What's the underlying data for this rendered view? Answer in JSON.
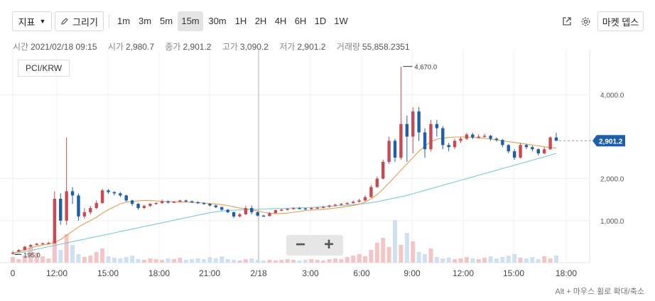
{
  "toolbar": {
    "indicator_label": "지표",
    "draw_label": "그리기",
    "timeframes": [
      "1m",
      "3m",
      "5m",
      "15m",
      "30m",
      "1H",
      "2H",
      "4H",
      "6H",
      "1D",
      "1W"
    ],
    "active_timeframe": "15m",
    "market_depth_label": "마켓 뎁스"
  },
  "ohlc": {
    "time_label": "시간",
    "time_value": "2021/02/18 09:15",
    "open_label": "시가",
    "open_value": "2,980.7",
    "close_label": "종가",
    "close_value": "2,901.2",
    "high_label": "고가",
    "high_value": "3,090.2",
    "low_label": "저가",
    "low_value": "2,901.2",
    "volume_label": "거래량",
    "volume_value": "55,858.2351"
  },
  "pair": "PCI/KRW",
  "zoom": {
    "out": "−",
    "in": "+"
  },
  "hint": "Alt + 마우스 휠로 확대/축소",
  "colors": {
    "up": "#c84a52",
    "down": "#1f5ea8",
    "ma_short": "#e0a050",
    "ma_long": "#7ec8d8",
    "price_tag": "#1f5ea8"
  },
  "chart_data": {
    "type": "candlestick",
    "y_ticks": [
      "1,000.0",
      "2,000.0",
      "4,000.0"
    ],
    "y_tick_values": [
      1000,
      2000,
      4000
    ],
    "ylim": [
      0,
      4900
    ],
    "x_ticks": [
      "0",
      "12:00",
      "15:00",
      "18:00",
      "21:00",
      "2/18",
      "3:00",
      "6:00",
      "9:00",
      "12:00",
      "15:00",
      "18:00"
    ],
    "current_price": 2901.2,
    "current_price_label": "2,901.2",
    "max_label": "4,670.0",
    "max_value": 4670,
    "min_label": "195.0",
    "min_value": 195,
    "candles": [
      {
        "o": 220,
        "c": 240,
        "h": 280,
        "l": 195
      },
      {
        "o": 260,
        "c": 300,
        "h": 320,
        "l": 250
      },
      {
        "o": 300,
        "c": 380,
        "h": 400,
        "l": 290
      },
      {
        "o": 380,
        "c": 420,
        "h": 440,
        "l": 370
      },
      {
        "o": 420,
        "c": 450,
        "h": 470,
        "l": 410
      },
      {
        "o": 450,
        "c": 460,
        "h": 480,
        "l": 440
      },
      {
        "o": 460,
        "c": 470,
        "h": 490,
        "l": 450
      },
      {
        "o": 460,
        "c": 1520,
        "h": 1700,
        "l": 450
      },
      {
        "o": 1520,
        "c": 1000,
        "h": 1650,
        "l": 900
      },
      {
        "o": 1000,
        "c": 1700,
        "h": 2980,
        "l": 900
      },
      {
        "o": 1700,
        "c": 1600,
        "h": 1800,
        "l": 1400
      },
      {
        "o": 1600,
        "c": 1100,
        "h": 1650,
        "l": 1000
      },
      {
        "o": 1100,
        "c": 1200,
        "h": 1300,
        "l": 1050
      },
      {
        "o": 1200,
        "c": 1300,
        "h": 1350,
        "l": 1150
      },
      {
        "o": 1300,
        "c": 1420,
        "h": 1480,
        "l": 1280
      },
      {
        "o": 1420,
        "c": 1720,
        "h": 1760,
        "l": 1400
      },
      {
        "o": 1720,
        "c": 1680,
        "h": 1750,
        "l": 1640
      },
      {
        "o": 1680,
        "c": 1650,
        "h": 1700,
        "l": 1600
      },
      {
        "o": 1650,
        "c": 1600,
        "h": 1680,
        "l": 1560
      },
      {
        "o": 1600,
        "c": 1480,
        "h": 1620,
        "l": 1450
      },
      {
        "o": 1480,
        "c": 1400,
        "h": 1500,
        "l": 1350
      },
      {
        "o": 1400,
        "c": 1300,
        "h": 1420,
        "l": 1260
      },
      {
        "o": 1300,
        "c": 1350,
        "h": 1380,
        "l": 1280
      },
      {
        "o": 1350,
        "c": 1400,
        "h": 1420,
        "l": 1330
      },
      {
        "o": 1400,
        "c": 1420,
        "h": 1440,
        "l": 1380
      },
      {
        "o": 1420,
        "c": 1460,
        "h": 1500,
        "l": 1400
      },
      {
        "o": 1460,
        "c": 1430,
        "h": 1480,
        "l": 1410
      },
      {
        "o": 1430,
        "c": 1450,
        "h": 1470,
        "l": 1420
      },
      {
        "o": 1450,
        "c": 1480,
        "h": 1500,
        "l": 1430
      },
      {
        "o": 1480,
        "c": 1460,
        "h": 1500,
        "l": 1440
      },
      {
        "o": 1460,
        "c": 1440,
        "h": 1480,
        "l": 1420
      },
      {
        "o": 1440,
        "c": 1420,
        "h": 1460,
        "l": 1400
      },
      {
        "o": 1420,
        "c": 1400,
        "h": 1440,
        "l": 1380
      },
      {
        "o": 1400,
        "c": 1360,
        "h": 1410,
        "l": 1340
      },
      {
        "o": 1360,
        "c": 1320,
        "h": 1380,
        "l": 1300
      },
      {
        "o": 1320,
        "c": 1260,
        "h": 1340,
        "l": 1240
      },
      {
        "o": 1260,
        "c": 1200,
        "h": 1280,
        "l": 1180
      },
      {
        "o": 1200,
        "c": 1100,
        "h": 1220,
        "l": 1060
      },
      {
        "o": 1100,
        "c": 1150,
        "h": 1180,
        "l": 1080
      },
      {
        "o": 1150,
        "c": 1300,
        "h": 1350,
        "l": 1140
      },
      {
        "o": 1300,
        "c": 1200,
        "h": 1360,
        "l": 1150
      },
      {
        "o": 1200,
        "c": 1120,
        "h": 1220,
        "l": 1100
      },
      {
        "o": 1120,
        "c": 1110,
        "h": 1140,
        "l": 1100
      },
      {
        "o": 1110,
        "c": 1180,
        "h": 1200,
        "l": 1100
      },
      {
        "o": 1180,
        "c": 1250,
        "h": 1260,
        "l": 1170
      },
      {
        "o": 1250,
        "c": 1260,
        "h": 1280,
        "l": 1230
      },
      {
        "o": 1260,
        "c": 1280,
        "h": 1300,
        "l": 1240
      },
      {
        "o": 1280,
        "c": 1300,
        "h": 1320,
        "l": 1260
      },
      {
        "o": 1300,
        "c": 1290,
        "h": 1320,
        "l": 1270
      },
      {
        "o": 1290,
        "c": 1280,
        "h": 1310,
        "l": 1260
      },
      {
        "o": 1280,
        "c": 1300,
        "h": 1320,
        "l": 1260
      },
      {
        "o": 1300,
        "c": 1310,
        "h": 1330,
        "l": 1280
      },
      {
        "o": 1310,
        "c": 1330,
        "h": 1350,
        "l": 1290
      },
      {
        "o": 1330,
        "c": 1360,
        "h": 1380,
        "l": 1310
      },
      {
        "o": 1360,
        "c": 1380,
        "h": 1400,
        "l": 1340
      },
      {
        "o": 1380,
        "c": 1400,
        "h": 1420,
        "l": 1360
      },
      {
        "o": 1400,
        "c": 1420,
        "h": 1440,
        "l": 1380
      },
      {
        "o": 1420,
        "c": 1450,
        "h": 1480,
        "l": 1400
      },
      {
        "o": 1450,
        "c": 1480,
        "h": 1520,
        "l": 1430
      },
      {
        "o": 1480,
        "c": 1560,
        "h": 1600,
        "l": 1460
      },
      {
        "o": 1560,
        "c": 1800,
        "h": 1850,
        "l": 1540
      },
      {
        "o": 1800,
        "c": 2000,
        "h": 2050,
        "l": 1780
      },
      {
        "o": 2000,
        "c": 2400,
        "h": 2450,
        "l": 1980
      },
      {
        "o": 2400,
        "c": 2900,
        "h": 3000,
        "l": 2350
      },
      {
        "o": 2900,
        "c": 2500,
        "h": 2950,
        "l": 2400
      },
      {
        "o": 2500,
        "c": 3300,
        "h": 4670,
        "l": 2450
      },
      {
        "o": 3300,
        "c": 3000,
        "h": 3500,
        "l": 2400
      },
      {
        "o": 3000,
        "c": 3600,
        "h": 3700,
        "l": 2600
      },
      {
        "o": 3600,
        "c": 3100,
        "h": 3700,
        "l": 2900
      },
      {
        "o": 3100,
        "c": 2700,
        "h": 3200,
        "l": 2500
      },
      {
        "o": 2700,
        "c": 3300,
        "h": 3400,
        "l": 2650
      },
      {
        "o": 3300,
        "c": 3200,
        "h": 3400,
        "l": 3000
      },
      {
        "o": 3200,
        "c": 2800,
        "h": 3250,
        "l": 2700
      },
      {
        "o": 2800,
        "c": 2750,
        "h": 2850,
        "l": 2650
      },
      {
        "o": 2750,
        "c": 2900,
        "h": 2950,
        "l": 2700
      },
      {
        "o": 2900,
        "c": 2950,
        "h": 3000,
        "l": 2850
      },
      {
        "o": 2950,
        "c": 3050,
        "h": 3090,
        "l": 2920
      },
      {
        "o": 3050,
        "c": 2980,
        "h": 3090,
        "l": 2940
      },
      {
        "o": 2980,
        "c": 3000,
        "h": 3060,
        "l": 2950
      },
      {
        "o": 3000,
        "c": 3020,
        "h": 3070,
        "l": 2970
      },
      {
        "o": 3020,
        "c": 2950,
        "h": 3040,
        "l": 2900
      },
      {
        "o": 2950,
        "c": 2920,
        "h": 2980,
        "l": 2880
      },
      {
        "o": 2920,
        "c": 2800,
        "h": 2940,
        "l": 2750
      },
      {
        "o": 2800,
        "c": 2650,
        "h": 2820,
        "l": 2600
      },
      {
        "o": 2650,
        "c": 2500,
        "h": 2700,
        "l": 2450
      },
      {
        "o": 2500,
        "c": 2800,
        "h": 2850,
        "l": 2480
      },
      {
        "o": 2800,
        "c": 2750,
        "h": 2830,
        "l": 2700
      },
      {
        "o": 2750,
        "c": 2700,
        "h": 2780,
        "l": 2650
      },
      {
        "o": 2700,
        "c": 2600,
        "h": 2720,
        "l": 2550
      },
      {
        "o": 2600,
        "c": 2700,
        "h": 2750,
        "l": 2580
      },
      {
        "o": 2700,
        "c": 2980,
        "h": 3000,
        "l": 2680
      },
      {
        "o": 2980,
        "c": 2901,
        "h": 3090,
        "l": 2901
      }
    ],
    "ma_short": [
      230,
      260,
      300,
      350,
      390,
      420,
      440,
      480,
      550,
      650,
      750,
      850,
      930,
      1000,
      1080,
      1180,
      1260,
      1330,
      1400,
      1440,
      1460,
      1470,
      1480,
      1480,
      1470,
      1460,
      1455,
      1450,
      1445,
      1440,
      1435,
      1430,
      1420,
      1410,
      1395,
      1380,
      1360,
      1330,
      1300,
      1280,
      1260,
      1230,
      1200,
      1180,
      1170,
      1170,
      1180,
      1200,
      1220,
      1240,
      1250,
      1260,
      1270,
      1280,
      1300,
      1320,
      1340,
      1360,
      1390,
      1440,
      1520,
      1620,
      1750,
      1900,
      2050,
      2200,
      2350,
      2500,
      2650,
      2780,
      2880,
      2940,
      2960,
      2980,
      2990,
      2990,
      2990,
      2980,
      2970,
      2960,
      2940,
      2920,
      2900,
      2880,
      2860,
      2840,
      2820,
      2800,
      2780,
      2760,
      2740,
      2730
    ],
    "ma_long": [
      200,
      230,
      260,
      290,
      320,
      350,
      380,
      410,
      440,
      470,
      500,
      530,
      560,
      590,
      620,
      650,
      680,
      710,
      740,
      770,
      800,
      830,
      860,
      890,
      920,
      950,
      980,
      1010,
      1040,
      1070,
      1100,
      1130,
      1160,
      1190,
      1210,
      1230,
      1240,
      1250,
      1255,
      1260,
      1265,
      1270,
      1275,
      1280,
      1285,
      1290,
      1295,
      1300,
      1305,
      1310,
      1315,
      1320,
      1330,
      1340,
      1350,
      1360,
      1370,
      1380,
      1395,
      1410,
      1430,
      1450,
      1480,
      1510,
      1540,
      1570,
      1600,
      1640,
      1680,
      1720,
      1760,
      1800,
      1840,
      1880,
      1920,
      1960,
      2000,
      2040,
      2080,
      2120,
      2160,
      2200,
      2240,
      2280,
      2320,
      2360,
      2400,
      2440,
      2480,
      2520,
      2560,
      2600
    ],
    "volumes": [
      8,
      5,
      10,
      22,
      14,
      9,
      6,
      30,
      18,
      40,
      25,
      12,
      8,
      10,
      15,
      20,
      9,
      7,
      6,
      8,
      10,
      5,
      4,
      6,
      5,
      4,
      6,
      5,
      7,
      4,
      5,
      6,
      5,
      8,
      6,
      9,
      5,
      4,
      3,
      5,
      6,
      4,
      3,
      4,
      3,
      4,
      5,
      4,
      3,
      4,
      5,
      4,
      3,
      5,
      6,
      5,
      8,
      10,
      12,
      9,
      18,
      28,
      35,
      22,
      60,
      25,
      42,
      30,
      15,
      12,
      20,
      8,
      6,
      7,
      5,
      6,
      8,
      6,
      5,
      7,
      9,
      6,
      8,
      10,
      12,
      7,
      6,
      8,
      5,
      9,
      6,
      10
    ]
  }
}
